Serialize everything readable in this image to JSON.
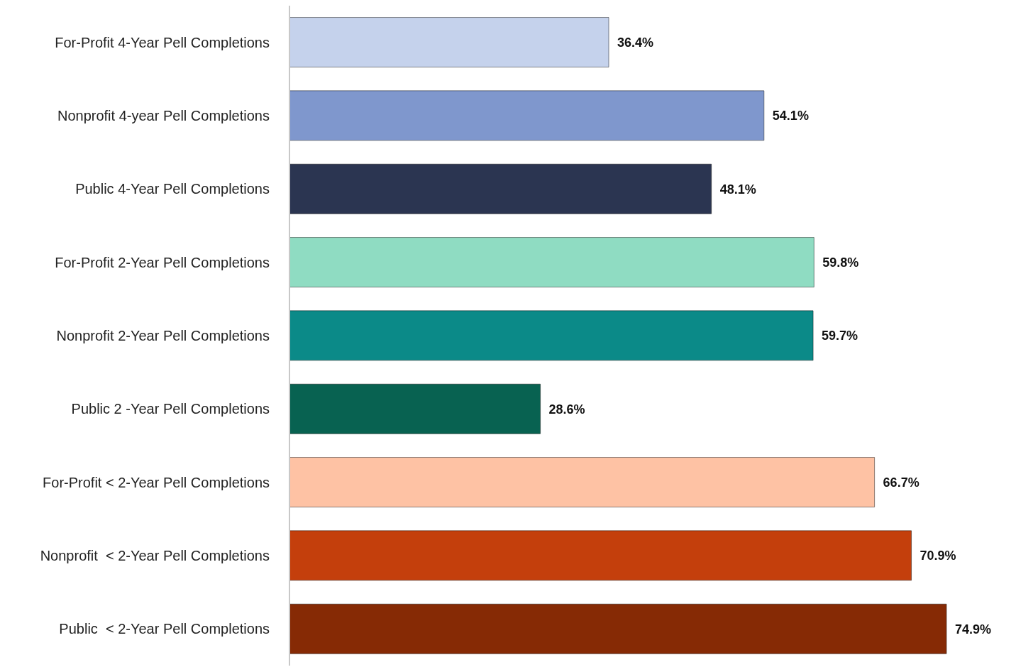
{
  "chart_data": {
    "type": "bar",
    "orientation": "horizontal",
    "categories": [
      "For-Profit 4-Year Pell Completions",
      "Nonprofit 4-year Pell Completions",
      "Public 4-Year Pell Completions",
      "For-Profit 2-Year Pell Completions",
      "Nonprofit 2-Year Pell Completions",
      "Public 2 -Year Pell Completions",
      "For-Profit < 2-Year Pell Completions",
      "Nonprofit  < 2-Year Pell Completions",
      "Public  < 2-Year Pell Completions"
    ],
    "values": [
      36.4,
      54.1,
      48.1,
      59.8,
      59.7,
      28.6,
      66.7,
      70.9,
      74.9
    ],
    "value_labels": [
      "36.4%",
      "54.1%",
      "48.1%",
      "59.8%",
      "59.7%",
      "28.6%",
      "66.7%",
      "70.9%",
      "74.9%"
    ],
    "colors": [
      "#c5d2ec",
      "#7f97cd",
      "#2b3551",
      "#8fdcc2",
      "#0b8a88",
      "#086251",
      "#fec2a4",
      "#c43f0c",
      "#862a05"
    ],
    "grid": false,
    "legend": false
  }
}
